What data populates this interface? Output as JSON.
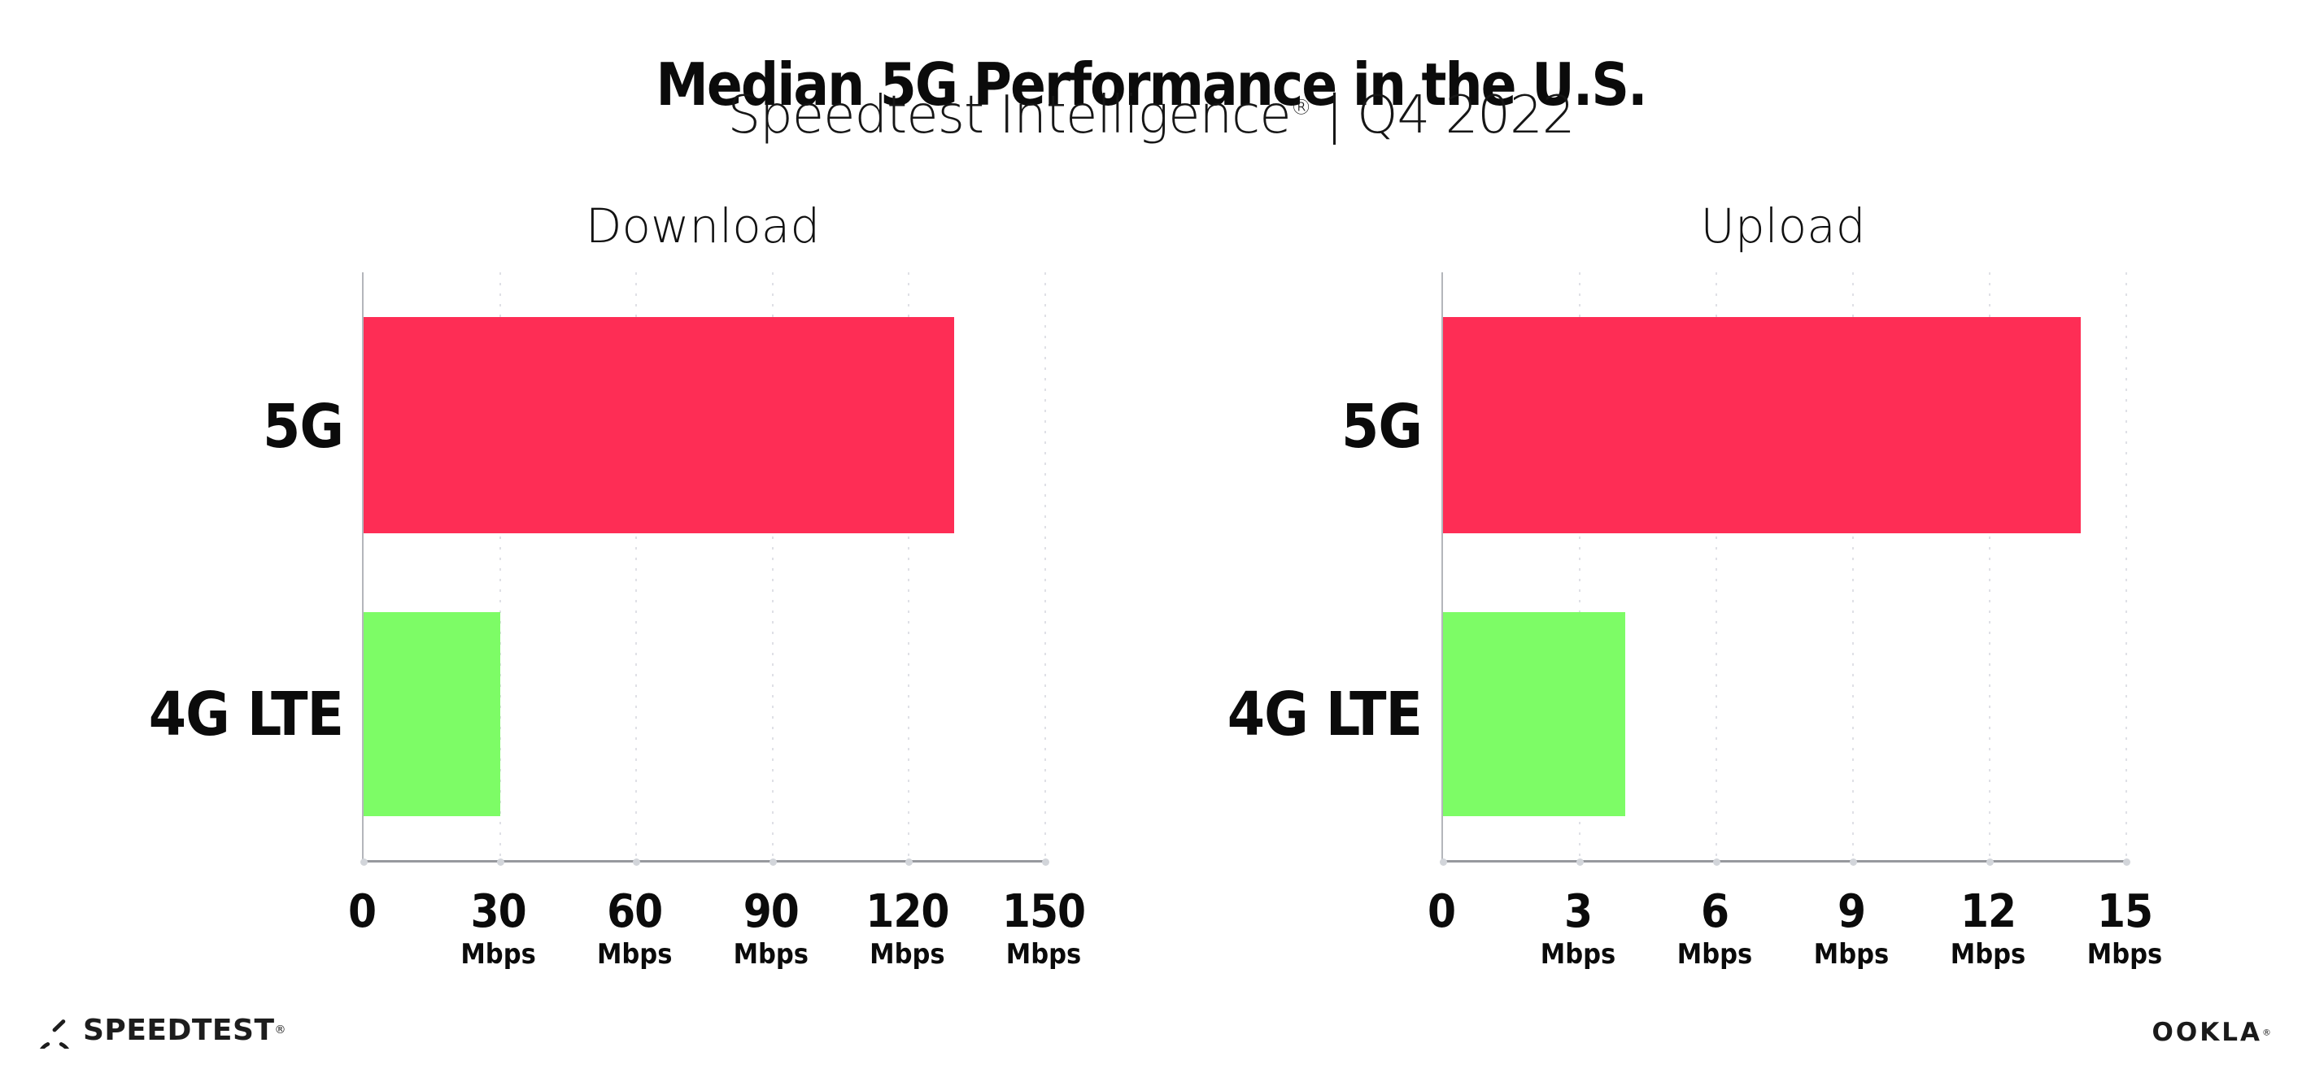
{
  "header": {
    "title": "Median 5G Performance in the U.S.",
    "subtitle_brand": "Speedtest Intelligence",
    "subtitle_reg": "®",
    "subtitle_sep": "|",
    "subtitle_period": "Q4 2022"
  },
  "colors": {
    "bar_5g": "#FE2D55",
    "bar_4g_lte": "#7DFC66",
    "x_axis": "#97999e",
    "y_axis": "#b4b6bb",
    "gridline": "#dfe0e6",
    "text": "#0b0b0b"
  },
  "chart_data": [
    {
      "type": "bar",
      "orientation": "horizontal",
      "title": "Download",
      "categories": [
        "5G",
        "4G LTE"
      ],
      "values": [
        130,
        30
      ],
      "unit": "Mbps",
      "xlim": [
        0,
        150
      ],
      "ticks": [
        0,
        30,
        60,
        90,
        120,
        150
      ],
      "tick_unit": "Mbps",
      "grid": "vertical dotted",
      "legend": "none",
      "series_colors": [
        "#FE2D55",
        "#7DFC66"
      ]
    },
    {
      "type": "bar",
      "orientation": "horizontal",
      "title": "Upload",
      "categories": [
        "5G",
        "4G LTE"
      ],
      "values": [
        14,
        4
      ],
      "unit": "Mbps",
      "xlim": [
        0,
        15
      ],
      "ticks": [
        0,
        3,
        6,
        9,
        12,
        15
      ],
      "tick_unit": "Mbps",
      "grid": "vertical dotted",
      "legend": "none",
      "series_colors": [
        "#FE2D55",
        "#7DFC66"
      ]
    }
  ],
  "footer": {
    "speedtest_label": "SPEEDTEST",
    "speedtest_reg": "®",
    "ookla_label": "OOKLA",
    "ookla_reg": "®"
  }
}
